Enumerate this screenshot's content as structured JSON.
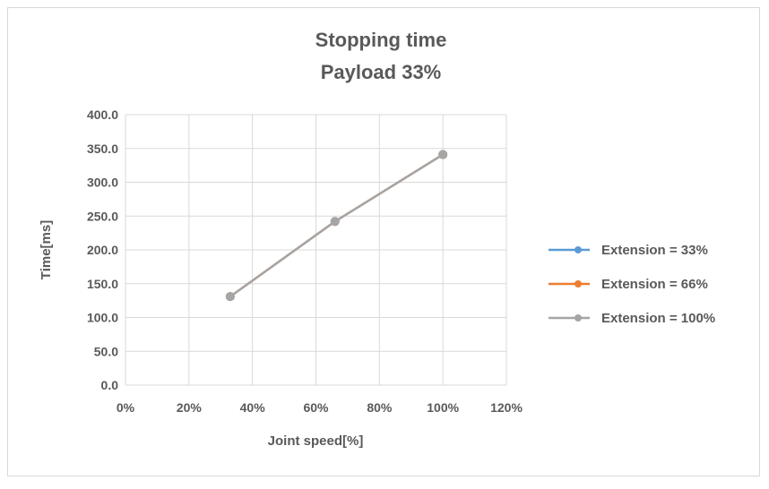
{
  "chart_data": {
    "type": "line",
    "title": [
      "Stopping time",
      "Payload 33%"
    ],
    "xlabel": "Joint speed[%]",
    "ylabel": "Time[ms]",
    "xlim": [
      0,
      120
    ],
    "ylim": [
      0,
      400
    ],
    "xticks": [
      0,
      20,
      40,
      60,
      80,
      100,
      120
    ],
    "xtick_labels": [
      "0%",
      "20%",
      "40%",
      "60%",
      "80%",
      "100%",
      "120%"
    ],
    "yticks": [
      0,
      50,
      100,
      150,
      200,
      250,
      300,
      350,
      400
    ],
    "ytick_labels": [
      "0.0",
      "50.0",
      "100.0",
      "150.0",
      "200.0",
      "250.0",
      "300.0",
      "350.0",
      "400.0"
    ],
    "grid": true,
    "legend_position": "right",
    "x": [
      33,
      66,
      100
    ],
    "series": [
      {
        "name": "Extension = 33%",
        "color": "#5b9bd5",
        "values": [
          131,
          242,
          341
        ]
      },
      {
        "name": "Extension = 66%",
        "color": "#ed7d31",
        "values": [
          131,
          242,
          341
        ]
      },
      {
        "name": "Extension = 100%",
        "color": "#a5a5a5",
        "values": [
          131,
          242,
          341
        ]
      }
    ]
  }
}
